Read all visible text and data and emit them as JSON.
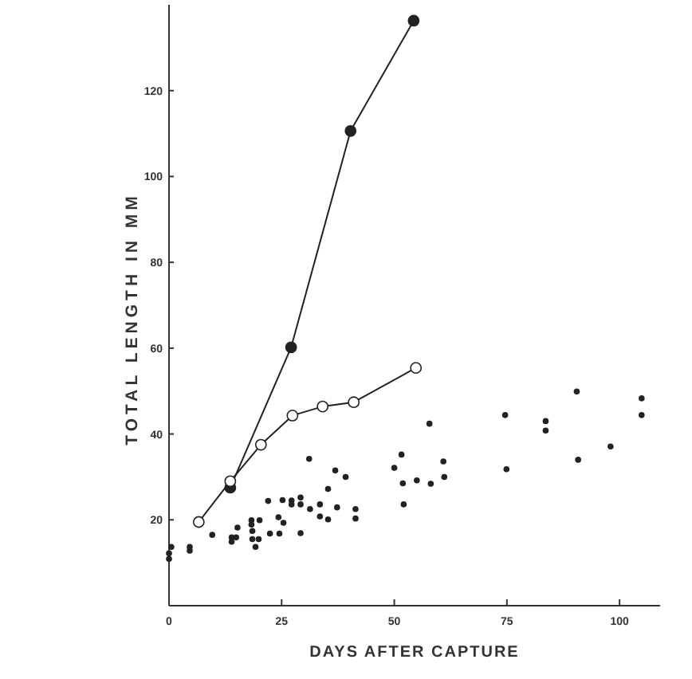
{
  "chart_data": {
    "type": "scatter",
    "xlabel": "DAYS AFTER CAPTURE",
    "ylabel": "TOTAL LENGTH IN MM",
    "xlim": [
      0,
      109
    ],
    "ylim": [
      0,
      140
    ],
    "xticks": [
      0,
      25,
      50,
      75,
      100
    ],
    "yticks": [
      20,
      40,
      60,
      80,
      100,
      120
    ],
    "grid": false,
    "series": [
      {
        "type": "line",
        "color": "#222222",
        "marker": "circle",
        "x": [
          13.6,
          27.1,
          40.3,
          54.3
        ],
        "values": [
          27.5,
          60.2,
          110.6,
          136.3
        ]
      },
      {
        "type": "line",
        "color": "#222222",
        "marker": "circle",
        "x": [
          6.6,
          13.6,
          20.4,
          27.4,
          34.1,
          41,
          54.8
        ],
        "values": [
          19.5,
          29,
          37.5,
          44.3,
          46.4,
          47.4,
          55.4
        ]
      },
      {
        "color": "#222222",
        "marker": "circle",
        "x": [
          0,
          0.5,
          0,
          4.6,
          4.6,
          9.6,
          13.9,
          14.9,
          13.9,
          15.2,
          18.3,
          18.3,
          18.5,
          18.5,
          19.2,
          20.1,
          19.9,
          22,
          22.4,
          24.3,
          24.5,
          25.2,
          25.4,
          27.2,
          27.2,
          29.2,
          29.2,
          29.2,
          31.1,
          31.3,
          33.5,
          33.5,
          35.3,
          35.3,
          36.9,
          37.3,
          39.2,
          41.4,
          41.4,
          50,
          51.6,
          51.9,
          52.1,
          55,
          57.8,
          58.1,
          60.9,
          61.1,
          74.6,
          74.9,
          83.6,
          83.6,
          90.5,
          90.8,
          98,
          104.9,
          104.9
        ],
        "values": [
          12.2,
          13.7,
          10.9,
          13.7,
          12.8,
          16.5,
          15.9,
          15.9,
          14.9,
          18.2,
          19.9,
          18.9,
          17.4,
          15.5,
          13.7,
          19.9,
          15.5,
          24.4,
          16.8,
          20.6,
          16.8,
          24.6,
          19.3,
          24.5,
          23.6,
          25.2,
          23.6,
          16.9,
          34.2,
          22.5,
          23.6,
          20.8,
          27.2,
          20.1,
          31.5,
          22.9,
          30,
          22.5,
          20.3,
          32.1,
          35.2,
          28.5,
          23.6,
          29.2,
          42.4,
          28.4,
          33.6,
          30,
          44.4,
          31.8,
          43,
          40.8,
          49.9,
          34,
          37.1,
          48.3,
          44.4
        ]
      }
    ]
  }
}
